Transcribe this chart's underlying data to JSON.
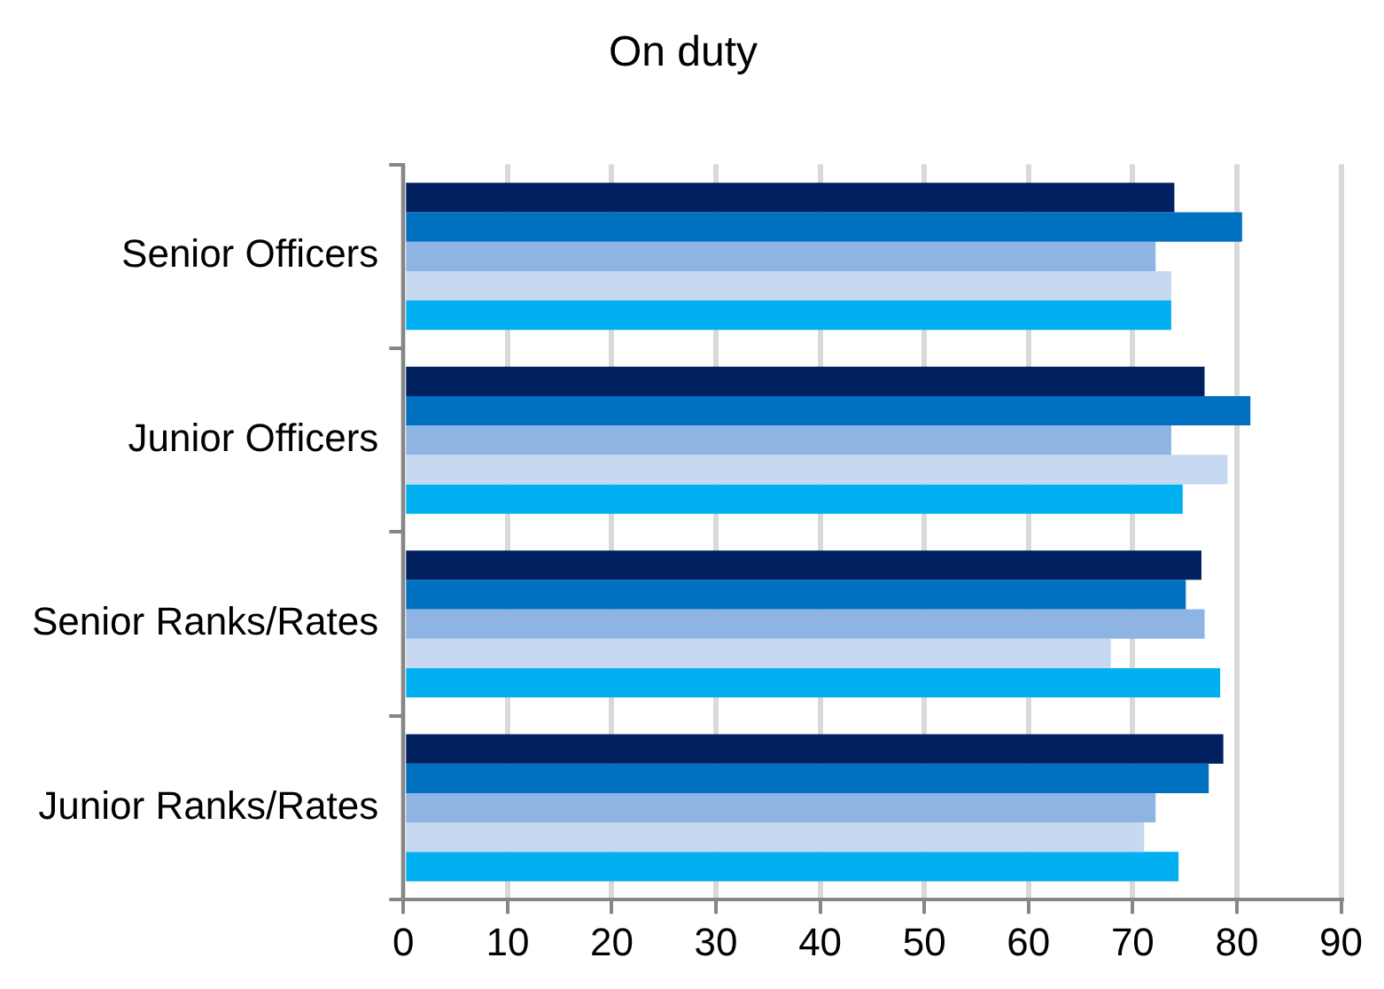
{
  "chart_data": {
    "type": "bar",
    "orientation": "horizontal",
    "title": "On duty",
    "categories": [
      "Senior Officers",
      "Junior Officers",
      "Senior Ranks/Rates",
      "Junior Ranks/Rates"
    ],
    "series": [
      {
        "color": "#002060",
        "values": [
          74.0,
          76.9,
          76.6,
          78.7
        ]
      },
      {
        "color": "#0070c0",
        "values": [
          80.5,
          81.3,
          75.1,
          77.3
        ]
      },
      {
        "color": "#8eb4e3",
        "values": [
          72.2,
          73.7,
          76.9,
          72.2
        ]
      },
      {
        "color": "#c6d9f1",
        "values": [
          73.7,
          79.1,
          67.9,
          71.1
        ]
      },
      {
        "color": "#00b0f0",
        "values": [
          73.7,
          74.8,
          78.4,
          74.4
        ]
      }
    ],
    "xlim": [
      0,
      90
    ],
    "xticks": [
      0,
      10,
      20,
      30,
      40,
      50,
      60,
      70,
      80,
      90
    ],
    "grid": "x",
    "legend": false
  }
}
